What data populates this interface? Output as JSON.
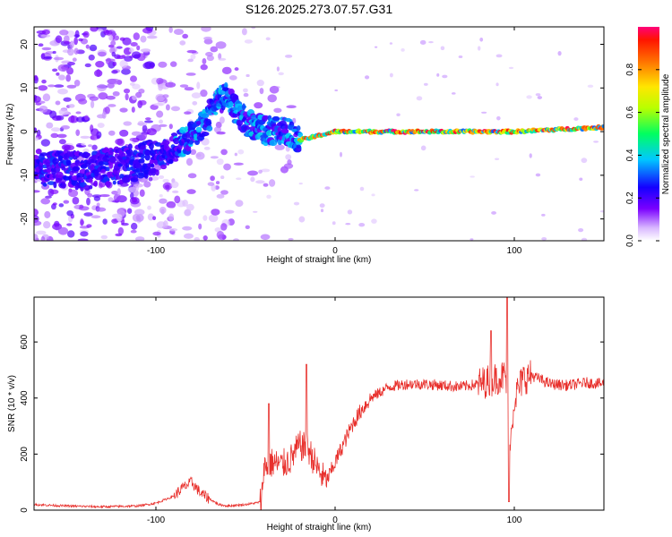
{
  "title": "S126.2025.273.07.57.G31",
  "chart_data": [
    {
      "type": "heatmap",
      "title": "S126.2025.273.07.57.G31",
      "xlabel": "Height of straight line (km)",
      "ylabel": "Frequency (Hz)",
      "xlim": [
        -168,
        150
      ],
      "ylim": [
        -25,
        24
      ],
      "x_ticks": [
        -100,
        0,
        100
      ],
      "x_tick_labels": [
        "-100",
        "0",
        "100"
      ],
      "y_ticks": [
        20,
        10,
        0,
        -10,
        -20
      ],
      "y_tick_labels": [
        "20",
        "10",
        "0",
        "-10",
        "-20"
      ],
      "colorbar": {
        "label": "Normalized spectral amplitude",
        "range": [
          0,
          1
        ],
        "ticks": [
          0.0,
          0.2,
          0.4,
          0.6,
          0.8
        ],
        "tick_labels": [
          "0.0",
          "0.2",
          "0.4",
          "0.6",
          "0.8"
        ]
      },
      "ridge": {
        "description_points_x": [
          -168,
          -140,
          -110,
          -95,
          -80,
          -70,
          -62,
          -55,
          -45,
          -35,
          -25,
          -20,
          0,
          40,
          80,
          100,
          150
        ],
        "center_freq_hz": [
          -8,
          -9,
          -7,
          -5,
          -1,
          4,
          9,
          4,
          1,
          0,
          0,
          -2,
          0,
          0,
          0,
          0,
          1
        ]
      }
    },
    {
      "type": "line",
      "xlabel": "Height of straight line (km)",
      "ylabel": "SNR (10 * v/v)",
      "xlim": [
        -168,
        150
      ],
      "ylim": [
        0,
        760
      ],
      "x_ticks": [
        -100,
        0,
        100
      ],
      "x_tick_labels": [
        "-100",
        "0",
        "100"
      ],
      "y_ticks": [
        0,
        200,
        400,
        600
      ],
      "y_tick_labels": [
        "0",
        "200",
        "400",
        "600"
      ],
      "series": [
        {
          "name": "SNR",
          "color": "#e8302c",
          "x": [
            -168,
            -150,
            -130,
            -110,
            -100,
            -90,
            -85,
            -80,
            -75,
            -70,
            -65,
            -60,
            -50,
            -45,
            -41,
            -40,
            -35,
            -30,
            -25,
            -20,
            -15,
            -10,
            -5,
            0,
            5,
            10,
            15,
            20,
            25,
            30,
            40,
            50,
            60,
            70,
            80,
            90,
            95,
            98,
            100,
            105,
            110,
            120,
            130,
            140,
            150
          ],
          "y": [
            20,
            15,
            12,
            15,
            25,
            50,
            80,
            100,
            60,
            40,
            20,
            15,
            20,
            25,
            30,
            150,
            170,
            160,
            180,
            230,
            220,
            150,
            100,
            170,
            240,
            310,
            360,
            400,
            420,
            440,
            450,
            450,
            445,
            440,
            450,
            470,
            480,
            250,
            400,
            470,
            480,
            450,
            445,
            455,
            450
          ]
        }
      ],
      "spikes": [
        {
          "x": -37,
          "y": 380
        },
        {
          "x": -16,
          "y": 520
        },
        {
          "x": 87,
          "y": 640
        },
        {
          "x": 96,
          "y": 760
        },
        {
          "x": 97,
          "y": 30
        }
      ]
    }
  ]
}
